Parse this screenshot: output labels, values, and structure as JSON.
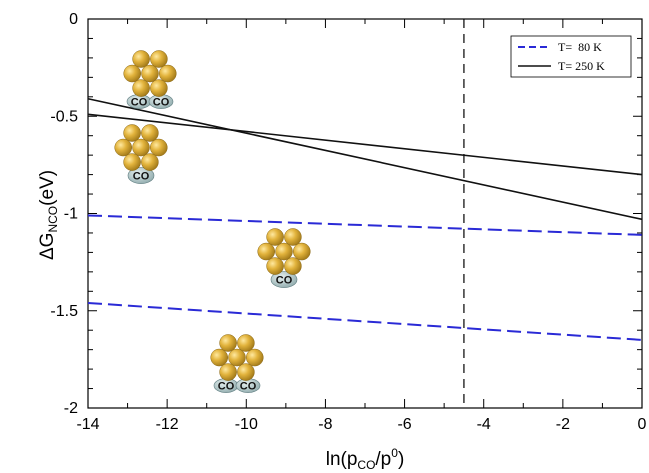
{
  "chart_data": {
    "type": "line",
    "xlabel": "ln(p",
    "xlabel_sub_co": "CO",
    "xlabel_sep": "/p",
    "xlabel_sup": "0",
    "xlabel_end": ")",
    "ylabel_prefix": "ΔG",
    "ylabel_sub": "NCO",
    "ylabel_suffix": "(eV)",
    "xlim": [
      -14,
      0
    ],
    "ylim": [
      -2,
      0
    ],
    "x_ticks": [
      -14,
      -12,
      -10,
      -8,
      -6,
      -4,
      -2,
      0
    ],
    "x_tick_labels": [
      "-14",
      "-12",
      "-10",
      "-8",
      "-6",
      "-4",
      "-2",
      "0"
    ],
    "y_ticks": [
      0,
      -0.5,
      -1,
      -1.5,
      -2
    ],
    "y_tick_labels": [
      "0",
      "-0.5",
      "-1",
      "-1.5",
      "-2"
    ],
    "vertical_line_x": -4.5,
    "legend_position": "top-right",
    "legend": [
      {
        "label": "T=  80 K",
        "style": "dashed",
        "color": "#2a2ad6"
      },
      {
        "label": "T= 250 K",
        "style": "solid",
        "color": "#111111"
      }
    ],
    "series": [
      {
        "group": "T=  80 K",
        "x": [
          -14,
          0
        ],
        "y": [
          -1.01,
          -1.11
        ]
      },
      {
        "group": "T=  80 K",
        "x": [
          -14,
          0
        ],
        "y": [
          -1.46,
          -1.65
        ]
      },
      {
        "group": "T= 250 K",
        "x": [
          -14,
          0
        ],
        "y": [
          -0.41,
          -1.03
        ]
      },
      {
        "group": "T= 250 K",
        "x": [
          -14,
          0
        ],
        "y": [
          -0.49,
          -0.8
        ]
      }
    ],
    "cluster_label": "CO"
  },
  "colors": {
    "dashed_series": "#2a2ad6",
    "solid_series": "#111111",
    "gold_atom": "#d4a52a",
    "co_molecule": "#a9c4c6"
  }
}
